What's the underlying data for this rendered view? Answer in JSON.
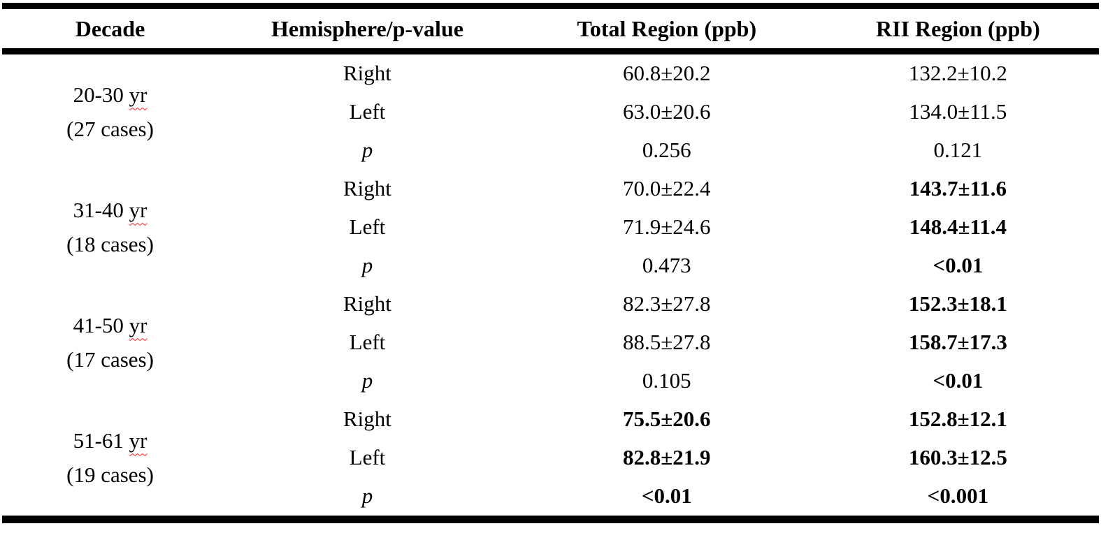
{
  "page": {
    "background_color": "#ffffff",
    "text_color": "#000000",
    "rule_color": "#000000",
    "spellcheck_squiggle_color": "#ff1a1a"
  },
  "table": {
    "headers": [
      "Decade",
      "Hemisphere/p-value",
      "Total Region (ppb)",
      "RII Region (ppb)"
    ],
    "groups": [
      {
        "decade": {
          "range": "20-30",
          "unit": "yr",
          "cases": "(27 cases)"
        },
        "rows": [
          {
            "hemisphere": "Right",
            "total": "60.8±20.2",
            "rii": "132.2±10.2",
            "total_bold": false,
            "rii_bold": false
          },
          {
            "hemisphere": "Left",
            "total": "63.0±20.6",
            "rii": "134.0±11.5",
            "total_bold": false,
            "rii_bold": false
          },
          {
            "hemisphere": "p",
            "total": "0.256",
            "rii": "0.121",
            "total_bold": false,
            "rii_bold": false
          }
        ]
      },
      {
        "decade": {
          "range": "31-40",
          "unit": "yr",
          "cases": "(18 cases)"
        },
        "rows": [
          {
            "hemisphere": "Right",
            "total": "70.0±22.4",
            "rii": "143.7±11.6",
            "total_bold": false,
            "rii_bold": true
          },
          {
            "hemisphere": "Left",
            "total": "71.9±24.6",
            "rii": "148.4±11.4",
            "total_bold": false,
            "rii_bold": true
          },
          {
            "hemisphere": "p",
            "total": "0.473",
            "rii": "<0.01",
            "total_bold": false,
            "rii_bold": true
          }
        ]
      },
      {
        "decade": {
          "range": "41-50",
          "unit": "yr",
          "cases": "(17 cases)"
        },
        "rows": [
          {
            "hemisphere": "Right",
            "total": "82.3±27.8",
            "rii": "152.3±18.1",
            "total_bold": false,
            "rii_bold": true
          },
          {
            "hemisphere": "Left",
            "total": "88.5±27.8",
            "rii": "158.7±17.3",
            "total_bold": false,
            "rii_bold": true
          },
          {
            "hemisphere": "p",
            "total": "0.105",
            "rii": "<0.01",
            "total_bold": false,
            "rii_bold": true
          }
        ]
      },
      {
        "decade": {
          "range": "51-61",
          "unit": "yr",
          "cases": "(19 cases)"
        },
        "rows": [
          {
            "hemisphere": "Right",
            "total": "75.5±20.6",
            "rii": "152.8±12.1",
            "total_bold": true,
            "rii_bold": true
          },
          {
            "hemisphere": "Left",
            "total": "82.8±21.9",
            "rii": "160.3±12.5",
            "total_bold": true,
            "rii_bold": true
          },
          {
            "hemisphere": "p",
            "total": "<0.01",
            "rii": "<0.001",
            "total_bold": true,
            "rii_bold": true
          }
        ]
      }
    ]
  }
}
